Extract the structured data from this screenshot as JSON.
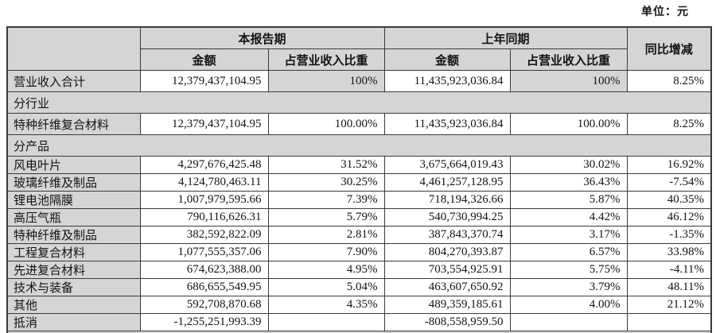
{
  "unit_label": "单位：元",
  "colors": {
    "shade_gray": "#d5d5d5",
    "border": "#3a3a3a",
    "background": "#ffffff"
  },
  "table": {
    "header": {
      "current_period": "本报告期",
      "prior_period": "上年同期",
      "yoy": "同比增减",
      "amount": "金额",
      "pct_of_revenue": "占营业收入比重"
    },
    "rows": [
      {
        "type": "data",
        "tall": true,
        "shaded_pct": true,
        "label": "营业收入合计",
        "cells": [
          "12,379,437,104.95",
          "100%",
          "11,435,923,036.84",
          "100%",
          "8.25%"
        ]
      },
      {
        "type": "section",
        "tall": true,
        "label": "分行业"
      },
      {
        "type": "data",
        "tall": true,
        "label": "特种纤维复合材料",
        "cells": [
          "12,379,437,104.95",
          "100.00%",
          "11,435,923,036.84",
          "100.00%",
          "8.25%"
        ]
      },
      {
        "type": "section",
        "tall": true,
        "label": "分产品"
      },
      {
        "type": "data",
        "label": "风电叶片",
        "cells": [
          "4,297,676,425.48",
          "31.52%",
          "3,675,664,019.43",
          "30.02%",
          "16.92%"
        ]
      },
      {
        "type": "data",
        "label": "玻璃纤维及制品",
        "cells": [
          "4,124,780,463.11",
          "30.25%",
          "4,461,257,128.95",
          "36.43%",
          "-7.54%"
        ]
      },
      {
        "type": "data",
        "label": "锂电池隔膜",
        "cells": [
          "1,007,979,595.66",
          "7.39%",
          "718,194,326.66",
          "5.87%",
          "40.35%"
        ]
      },
      {
        "type": "data",
        "label": "高压气瓶",
        "cells": [
          "790,116,626.31",
          "5.79%",
          "540,730,994.25",
          "4.42%",
          "46.12%"
        ]
      },
      {
        "type": "data",
        "label": "特种纤维及制品",
        "cells": [
          "382,592,822.09",
          "2.81%",
          "387,843,370.74",
          "3.17%",
          "-1.35%"
        ]
      },
      {
        "type": "data",
        "label": "工程复合材料",
        "cells": [
          "1,077,555,357.06",
          "7.90%",
          "804,270,393.87",
          "6.57%",
          "33.98%"
        ]
      },
      {
        "type": "data",
        "label": "先进复合材料",
        "cells": [
          "674,623,388.00",
          "4.95%",
          "703,554,925.91",
          "5.75%",
          "-4.11%"
        ]
      },
      {
        "type": "data",
        "label": "技术与装备",
        "cells": [
          "686,655,549.95",
          "5.04%",
          "463,607,650.92",
          "3.79%",
          "48.11%"
        ]
      },
      {
        "type": "data",
        "label": "其他",
        "cells": [
          "592,708,870.68",
          "4.35%",
          "489,359,185.61",
          "4.00%",
          "21.12%"
        ]
      },
      {
        "type": "data",
        "label": "抵消",
        "cells": [
          "-1,255,251,993.39",
          "",
          "-808,558,959.50",
          "",
          ""
        ]
      },
      {
        "type": "partial"
      }
    ]
  }
}
